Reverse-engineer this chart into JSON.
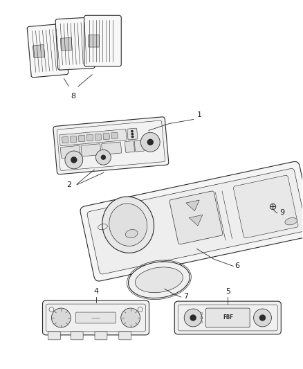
{
  "background_color": "#ffffff",
  "line_color": "#2a2a2a",
  "label_color": "#1a1a1a",
  "fig_width": 4.38,
  "fig_height": 5.33,
  "dpi": 100
}
